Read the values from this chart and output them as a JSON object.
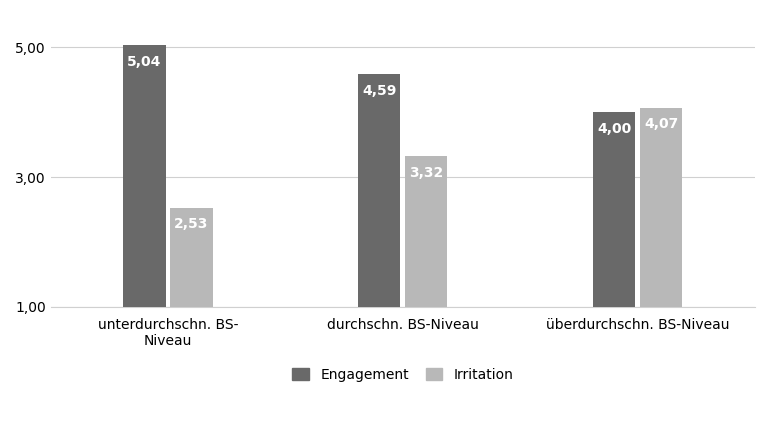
{
  "categories": [
    "unterdurchschn. BS-\nNiveau",
    "durchschn. BS-Niveau",
    "überdurchschn. BS-Niveau"
  ],
  "engagement": [
    5.04,
    4.59,
    4.0
  ],
  "irritation": [
    2.53,
    3.32,
    4.07
  ],
  "engagement_color": "#696969",
  "irritation_color": "#b8b8b8",
  "bar_width": 0.18,
  "bar_gap": 0.02,
  "ylim": [
    1.0,
    5.5
  ],
  "yticks": [
    1.0,
    3.0,
    5.0
  ],
  "ytick_labels": [
    "1,00",
    "3,00",
    "5,00"
  ],
  "legend_labels": [
    "Engagement",
    "Irritation"
  ],
  "label_fontsize": 10,
  "tick_fontsize": 10,
  "value_fontsize": 10,
  "background_color": "#ffffff",
  "grid_color": "#d0d0d0"
}
